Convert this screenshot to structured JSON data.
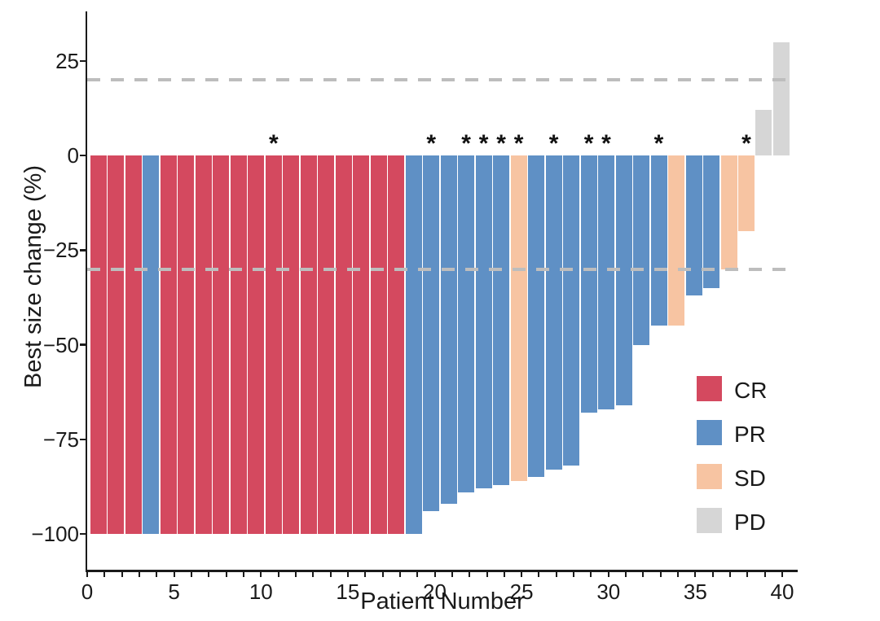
{
  "chart_data": {
    "type": "bar",
    "subtype": "waterfall",
    "title": "",
    "xlabel": "Patient Number",
    "ylabel": "Best size change (%)",
    "xlim": [
      0,
      40
    ],
    "ylim": [
      -110,
      38
    ],
    "grid": false,
    "x_tick_minor_step": 1,
    "x_tick_labels": [
      {
        "label": "0",
        "value": 0
      },
      {
        "label": "5",
        "value": 5
      },
      {
        "label": "10",
        "value": 10
      },
      {
        "label": "15",
        "value": 15
      },
      {
        "label": "20",
        "value": 20
      },
      {
        "label": "25",
        "value": 25
      },
      {
        "label": "30",
        "value": 30
      },
      {
        "label": "35",
        "value": 35
      },
      {
        "label": "40",
        "value": 40
      }
    ],
    "y_tick_labels": [
      {
        "label": "25",
        "value": 25
      },
      {
        "label": "0",
        "value": 0
      },
      {
        "label": "−25",
        "value": -25
      },
      {
        "label": "−50",
        "value": -50
      },
      {
        "label": "−75",
        "value": -75
      },
      {
        "label": "−100",
        "value": -100
      }
    ],
    "reference_lines": [
      {
        "y": 20,
        "style": "dashed",
        "color": "#bdbdbd"
      },
      {
        "y": -30,
        "style": "dashed",
        "color": "#bdbdbd"
      }
    ],
    "group_colors": {
      "CR": "#d4495f",
      "PR": "#5f90c5",
      "SD": "#f7c4a2",
      "PD": "#d6d6d6"
    },
    "annotation_symbol": "*",
    "flagged_patients": [
      11,
      20,
      22,
      23,
      24,
      25,
      27,
      29,
      30,
      33,
      38
    ],
    "points": [
      {
        "patient": 1,
        "value": -100,
        "group": "CR"
      },
      {
        "patient": 2,
        "value": -100,
        "group": "CR"
      },
      {
        "patient": 3,
        "value": -100,
        "group": "CR"
      },
      {
        "patient": 4,
        "value": -100,
        "group": "PR"
      },
      {
        "patient": 5,
        "value": -100,
        "group": "CR"
      },
      {
        "patient": 6,
        "value": -100,
        "group": "CR"
      },
      {
        "patient": 7,
        "value": -100,
        "group": "CR"
      },
      {
        "patient": 8,
        "value": -100,
        "group": "CR"
      },
      {
        "patient": 9,
        "value": -100,
        "group": "CR"
      },
      {
        "patient": 10,
        "value": -100,
        "group": "CR"
      },
      {
        "patient": 11,
        "value": -100,
        "group": "CR"
      },
      {
        "patient": 12,
        "value": -100,
        "group": "CR"
      },
      {
        "patient": 13,
        "value": -100,
        "group": "CR"
      },
      {
        "patient": 14,
        "value": -100,
        "group": "CR"
      },
      {
        "patient": 15,
        "value": -100,
        "group": "CR"
      },
      {
        "patient": 16,
        "value": -100,
        "group": "CR"
      },
      {
        "patient": 17,
        "value": -100,
        "group": "CR"
      },
      {
        "patient": 18,
        "value": -100,
        "group": "CR"
      },
      {
        "patient": 19,
        "value": -100,
        "group": "PR"
      },
      {
        "patient": 20,
        "value": -94,
        "group": "PR"
      },
      {
        "patient": 21,
        "value": -92,
        "group": "PR"
      },
      {
        "patient": 22,
        "value": -89,
        "group": "PR"
      },
      {
        "patient": 23,
        "value": -88,
        "group": "PR"
      },
      {
        "patient": 24,
        "value": -87,
        "group": "PR"
      },
      {
        "patient": 25,
        "value": -86,
        "group": "SD"
      },
      {
        "patient": 26,
        "value": -85,
        "group": "PR"
      },
      {
        "patient": 27,
        "value": -83,
        "group": "PR"
      },
      {
        "patient": 28,
        "value": -82,
        "group": "PR"
      },
      {
        "patient": 29,
        "value": -68,
        "group": "PR"
      },
      {
        "patient": 30,
        "value": -67,
        "group": "PR"
      },
      {
        "patient": 31,
        "value": -66,
        "group": "PR"
      },
      {
        "patient": 32,
        "value": -50,
        "group": "PR"
      },
      {
        "patient": 33,
        "value": -45,
        "group": "PR"
      },
      {
        "patient": 34,
        "value": -45,
        "group": "SD"
      },
      {
        "patient": 35,
        "value": -37,
        "group": "PR"
      },
      {
        "patient": 36,
        "value": -35,
        "group": "PR"
      },
      {
        "patient": 37,
        "value": -30,
        "group": "SD"
      },
      {
        "patient": 38,
        "value": -20,
        "group": "SD"
      },
      {
        "patient": 39,
        "value": 12,
        "group": "PD"
      },
      {
        "patient": 40,
        "value": 30,
        "group": "PD"
      }
    ],
    "legend_position": "inside-bottom-right"
  },
  "legend": {
    "items": [
      {
        "label": "CR",
        "color": "#d4495f"
      },
      {
        "label": "PR",
        "color": "#5f90c5"
      },
      {
        "label": "SD",
        "color": "#f7c4a2"
      },
      {
        "label": "PD",
        "color": "#d6d6d6"
      }
    ]
  }
}
